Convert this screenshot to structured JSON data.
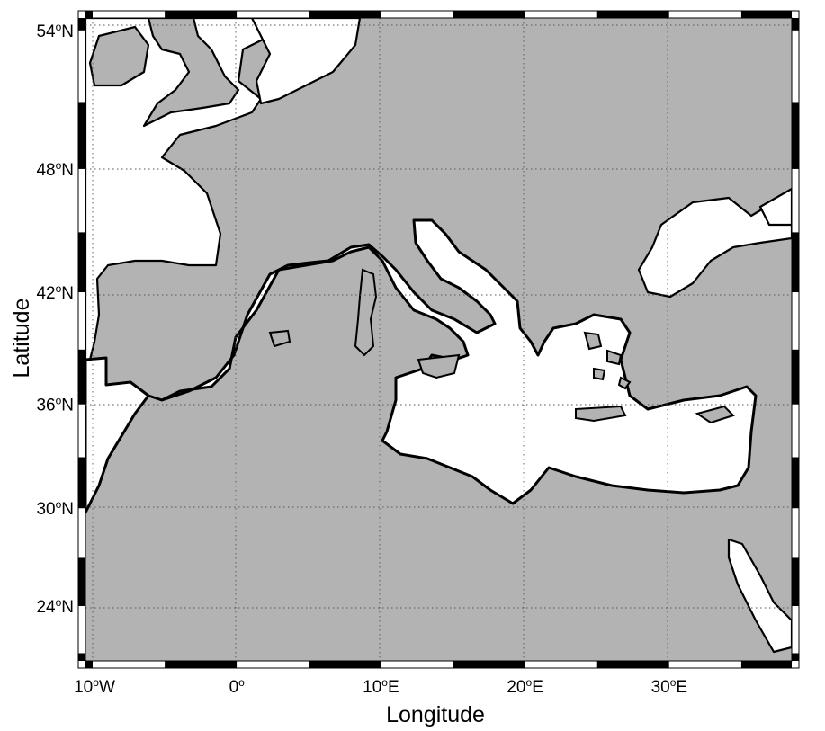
{
  "figure": {
    "type": "map",
    "xlabel": "Longitude",
    "ylabel": "Latitude",
    "x_ticks": [
      {
        "value": -10,
        "label": "10°W",
        "deg": "10",
        "sup": "o",
        "hemi": "W"
      },
      {
        "value": 0,
        "label": "0°",
        "deg": "0",
        "sup": "o",
        "hemi": ""
      },
      {
        "value": 10,
        "label": "10°E",
        "deg": "10",
        "sup": "o",
        "hemi": "E"
      },
      {
        "value": 20,
        "label": "20°E",
        "deg": "20",
        "sup": "o",
        "hemi": "E"
      },
      {
        "value": 30,
        "label": "30°E",
        "deg": "30",
        "sup": "o",
        "hemi": "E"
      }
    ],
    "y_ticks": [
      {
        "value": 54,
        "label": "54°N",
        "deg": "54",
        "sup": "o",
        "hemi": "N"
      },
      {
        "value": 48,
        "label": "48°N",
        "deg": "48",
        "sup": "o",
        "hemi": "N"
      },
      {
        "value": 42,
        "label": "42°N",
        "deg": "42",
        "sup": "o",
        "hemi": "N"
      },
      {
        "value": 36,
        "label": "36°N",
        "deg": "36",
        "sup": "o",
        "hemi": "N"
      },
      {
        "value": 30,
        "label": "30°N",
        "deg": "30",
        "sup": "o",
        "hemi": "N"
      },
      {
        "value": 24,
        "label": "24°N",
        "deg": "24",
        "sup": "o",
        "hemi": "N"
      }
    ],
    "lon_range": [
      -10.5,
      38.5
    ],
    "lat_range": [
      20.5,
      54.5
    ],
    "grid": true,
    "frame": "black-white checkered border",
    "colors": {
      "land": "#b3b3b3",
      "sea": "#ffffff",
      "mesh": "#000000",
      "coastline": "#000000"
    },
    "mesh_region": "Mediterranean Sea and Gulf of Cadiz (triangular grid)"
  }
}
